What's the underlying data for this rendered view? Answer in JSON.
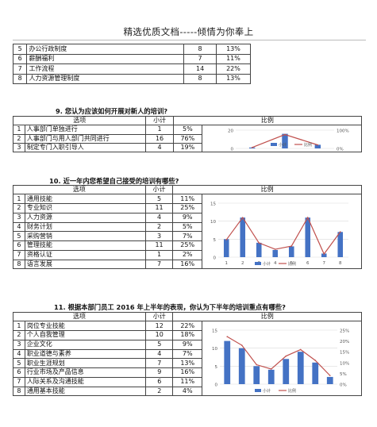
{
  "header": {
    "title": "精选优质文档-----倾情为你奉上"
  },
  "prev_table": {
    "rows": [
      {
        "n": "5",
        "label": "办公行政制度",
        "count": "8",
        "pct": "13%"
      },
      {
        "n": "6",
        "label": "薪酬福利",
        "count": "7",
        "pct": "11%"
      },
      {
        "n": "7",
        "label": "工作流程",
        "count": "14",
        "pct": "22%"
      },
      {
        "n": "8",
        "label": "人力资源管理制度",
        "count": "8",
        "pct": "13%"
      }
    ]
  },
  "q9": {
    "title": "9. 您认为应该如何开展对新人的培训?",
    "head": {
      "option": "选项",
      "count": "小计",
      "ratio": "比例"
    },
    "rows": [
      {
        "n": "1",
        "label": "人事部门单独进行",
        "count": "1",
        "pct": "5%"
      },
      {
        "n": "2",
        "label": "人事部门与用人部门共同进行",
        "count": "16",
        "pct": "76%"
      },
      {
        "n": "3",
        "label": "制定专门入职引导人",
        "count": "4",
        "pct": "19%"
      }
    ],
    "chart_data": {
      "type": "bar",
      "categories": [
        "1",
        "2",
        "3"
      ],
      "series": [
        {
          "name": "小计",
          "values": [
            1,
            16,
            4
          ],
          "axis": "left",
          "color": "#4472C4"
        },
        {
          "name": "比例",
          "values": [
            5,
            76,
            19
          ],
          "axis": "right",
          "color": "#C0504D"
        }
      ],
      "ylim_left": [
        0,
        20
      ],
      "ylim_right": [
        0,
        100
      ],
      "left_ticks": [
        "20",
        "0"
      ],
      "right_ticks": [
        "100%",
        "0%"
      ],
      "legend": [
        "小计",
        "比例"
      ]
    }
  },
  "q10": {
    "title": "10. 近一年内您希望自己接受的培训有哪些?",
    "head": {
      "option": "选项",
      "count": "小计",
      "ratio": "比例"
    },
    "rows": [
      {
        "n": "1",
        "label": "通用技能",
        "count": "5",
        "pct": "11%"
      },
      {
        "n": "2",
        "label": "专业知识",
        "count": "11",
        "pct": "25%"
      },
      {
        "n": "3",
        "label": "人力资源",
        "count": "4",
        "pct": "9%"
      },
      {
        "n": "4",
        "label": "财务计划",
        "count": "2",
        "pct": "5%"
      },
      {
        "n": "5",
        "label": "采购营销",
        "count": "3",
        "pct": "7%"
      },
      {
        "n": "6",
        "label": "管理技能",
        "count": "11",
        "pct": "25%"
      },
      {
        "n": "7",
        "label": "资格认证",
        "count": "1",
        "pct": "2%"
      },
      {
        "n": "8",
        "label": "语言发展",
        "count": "7",
        "pct": "16%"
      }
    ],
    "chart_data": {
      "type": "bar",
      "categories": [
        "1",
        "2",
        "3",
        "4",
        "5",
        "6",
        "7",
        "8"
      ],
      "series": [
        {
          "name": "小计",
          "values": [
            5,
            11,
            4,
            2,
            3,
            11,
            1,
            7
          ],
          "axis": "left",
          "color": "#4472C4"
        },
        {
          "name": "比例",
          "values": [
            11,
            25,
            9,
            5,
            7,
            25,
            2,
            16
          ],
          "axis": "right",
          "color": "#C0504D"
        }
      ],
      "ylim_left": [
        0,
        15
      ],
      "left_ticks": [
        "15",
        "10",
        "5",
        "0"
      ],
      "legend": [
        "小计",
        "比例"
      ]
    }
  },
  "q11": {
    "title": "11. 根据本部门员工 2016 年上半年的表现，你认为下半年的培训重点有哪些?",
    "head": {
      "option": "选项",
      "count": "小计",
      "ratio": "比例"
    },
    "rows": [
      {
        "n": "1",
        "label": "岗位专业技能",
        "count": "12",
        "pct": "22%"
      },
      {
        "n": "2",
        "label": "个人自我管理",
        "count": "10",
        "pct": "18%"
      },
      {
        "n": "3",
        "label": "企业文化",
        "count": "5",
        "pct": "9%"
      },
      {
        "n": "4",
        "label": "职业道德与素养",
        "count": "4",
        "pct": "7%"
      },
      {
        "n": "5",
        "label": "职业生涯规划",
        "count": "7",
        "pct": "13%"
      },
      {
        "n": "6",
        "label": "行业市场及产品信息",
        "count": "9",
        "pct": "16%"
      },
      {
        "n": "7",
        "label": "人际关系及沟通技能",
        "count": "6",
        "pct": "11%"
      },
      {
        "n": "8",
        "label": "通用基本技能",
        "count": "2",
        "pct": "4%"
      }
    ],
    "chart_data": {
      "type": "bar",
      "categories": [
        "1",
        "2",
        "3",
        "4",
        "5",
        "6",
        "7",
        "8"
      ],
      "series": [
        {
          "name": "小计",
          "values": [
            12,
            10,
            5,
            4,
            7,
            9,
            6,
            2
          ],
          "axis": "left",
          "color": "#4472C4"
        },
        {
          "name": "比例",
          "values": [
            22,
            18,
            9,
            7,
            13,
            16,
            11,
            4
          ],
          "axis": "right",
          "color": "#C0504D"
        }
      ],
      "ylim_left": [
        0,
        15
      ],
      "ylim_right": [
        0,
        25
      ],
      "left_ticks": [
        "15",
        "10",
        "5",
        "0"
      ],
      "right_ticks": [
        "25%",
        "20%",
        "15%",
        "10%",
        "5%",
        "0%"
      ],
      "legend": [
        "小计",
        "比例"
      ]
    }
  }
}
